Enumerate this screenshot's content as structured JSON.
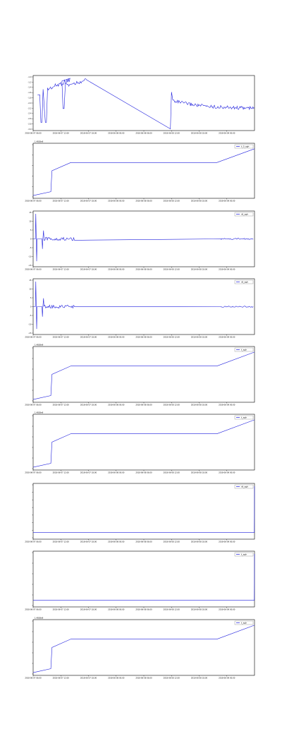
{
  "chart_data": [
    {
      "type": "line",
      "title": "",
      "offset_label": "",
      "yticks": [
        "-1.0",
        "-1.2",
        "-1.4",
        "-1.6",
        "-1.8",
        "-2.0",
        "-2.2",
        "-2.4",
        "-2.6",
        "-2.8",
        "-3.0"
      ],
      "xticks": [
        "2018-06-07 06:00",
        "2018-06-07 12:00",
        "2018-06-07 18:00",
        "2018-06-08 00:00",
        "2018-06-08 06:00",
        "2018-06-08 12:00",
        "2018-06-08 18:00",
        "2018-06-09 00:00"
      ],
      "ylim": [
        -3.0,
        -1.0
      ],
      "series": [
        {
          "name": "",
          "x": [],
          "y": []
        }
      ],
      "legend": ""
    },
    {
      "type": "line",
      "title": "",
      "offset_label": "1.4838e9",
      "yticks": [
        "",
        "",
        "",
        "",
        "",
        ""
      ],
      "xticks": [
        "2018-06-07 06:00",
        "2018-06-07 12:00",
        "2018-06-07 18:00",
        "2018-06-08 00:00",
        "2018-06-08 06:00",
        "2018-06-08 12:00",
        "2018-06-08 18:00",
        "2018-06-09 00:00"
      ],
      "series": [
        {
          "name": "t_0_sgh",
          "x": [],
          "y": []
        }
      ],
      "legend": "top-right"
    },
    {
      "type": "line",
      "title": "",
      "offset_label": "",
      "yticks": [
        "15",
        "10",
        "5",
        "0",
        "-5",
        "-10",
        "-15"
      ],
      "ylim": [
        -15,
        15
      ],
      "xticks": [
        "2018-06-07 06:00",
        "2018-06-07 12:00",
        "2018-06-07 18:00",
        "2018-06-08 00:00",
        "2018-06-08 06:00",
        "2018-06-08 12:00",
        "2018-06-08 18:00",
        "2018-06-09 00:00"
      ],
      "series": [
        {
          "name": "dt_sgh",
          "x": [],
          "y": []
        }
      ],
      "legend": "top-right"
    },
    {
      "type": "line",
      "title": "",
      "offset_label": "",
      "yticks": [
        "15",
        "10",
        "5",
        "0",
        "-5",
        "-10",
        "-15"
      ],
      "ylim": [
        -15,
        15
      ],
      "xticks": [
        "2018-06-07 06:00",
        "2018-06-07 12:00",
        "2018-06-07 18:00",
        "2018-06-08 00:00",
        "2018-06-08 06:00",
        "2018-06-08 12:00",
        "2018-06-08 18:00",
        "2018-06-09 00:00"
      ],
      "series": [
        {
          "name": "dt_sgh",
          "x": [],
          "y": []
        }
      ],
      "legend": "top-right"
    },
    {
      "type": "line",
      "title": "",
      "offset_label": "1.4838e9",
      "yticks": [
        "",
        "",
        "",
        "",
        "",
        ""
      ],
      "xticks": [
        "2018-06-07 06:00",
        "2018-06-07 12:00",
        "2018-06-07 18:00",
        "2018-06-08 00:00",
        "2018-06-08 06:00",
        "2018-06-08 12:00",
        "2018-06-08 18:00",
        "2018-06-09 00:00"
      ],
      "series": [
        {
          "name": "t_sgh",
          "x": [],
          "y": []
        }
      ],
      "legend": "top-right"
    },
    {
      "type": "line",
      "title": "",
      "offset_label": "1.4838e9",
      "yticks": [
        "",
        "",
        "",
        "",
        "",
        ""
      ],
      "xticks": [
        "2018-06-07 06:00",
        "2018-06-07 12:00",
        "2018-06-07 18:00",
        "2018-06-08 00:00",
        "2018-06-08 06:00",
        "2018-06-08 12:00",
        "2018-06-08 18:00",
        "2018-06-09 00:00"
      ],
      "series": [
        {
          "name": "t_sgh",
          "x": [],
          "y": []
        }
      ],
      "legend": "top-right"
    },
    {
      "type": "line",
      "title": "",
      "offset_label": "",
      "yticks": [
        "",
        "",
        "",
        "",
        "",
        "",
        "",
        ""
      ],
      "xticks": [
        "2018-06-07 06:00",
        "2018-06-07 12:00",
        "2018-06-07 18:00",
        "2018-06-08 00:00",
        "2018-06-08 06:00",
        "2018-06-08 12:00",
        "2018-06-08 18:00",
        "2018-06-09 00:00"
      ],
      "series": [
        {
          "name": "dt_sgh",
          "x": [],
          "y": []
        }
      ],
      "legend": "top-right"
    },
    {
      "type": "line",
      "title": "",
      "offset_label": "",
      "yticks": [
        "",
        "",
        "",
        "",
        "",
        ""
      ],
      "xticks": [
        "2018-06-07 06:00",
        "2018-06-07 12:00",
        "2018-06-07 18:00",
        "2018-06-08 00:00",
        "2018-06-08 06:00",
        "2018-06-08 12:00",
        "2018-06-08 18:00",
        "2018-06-09 00:00"
      ],
      "series": [
        {
          "name": "t_sgh",
          "x": [],
          "y": []
        }
      ],
      "legend": "top-right"
    },
    {
      "type": "line",
      "title": "",
      "offset_label": "1.4838e9",
      "yticks": [
        "",
        "",
        "",
        "",
        "",
        ""
      ],
      "xticks": [
        "2018-06-07 06:00",
        "2018-06-07 12:00",
        "2018-06-07 18:00",
        "2018-06-08 00:00",
        "2018-06-08 06:00",
        "2018-06-08 12:00",
        "2018-06-08 18:00",
        "2018-06-09 00:00"
      ],
      "series": [
        {
          "name": "t_sgh",
          "x": [],
          "y": []
        }
      ],
      "legend": "top-right"
    }
  ]
}
